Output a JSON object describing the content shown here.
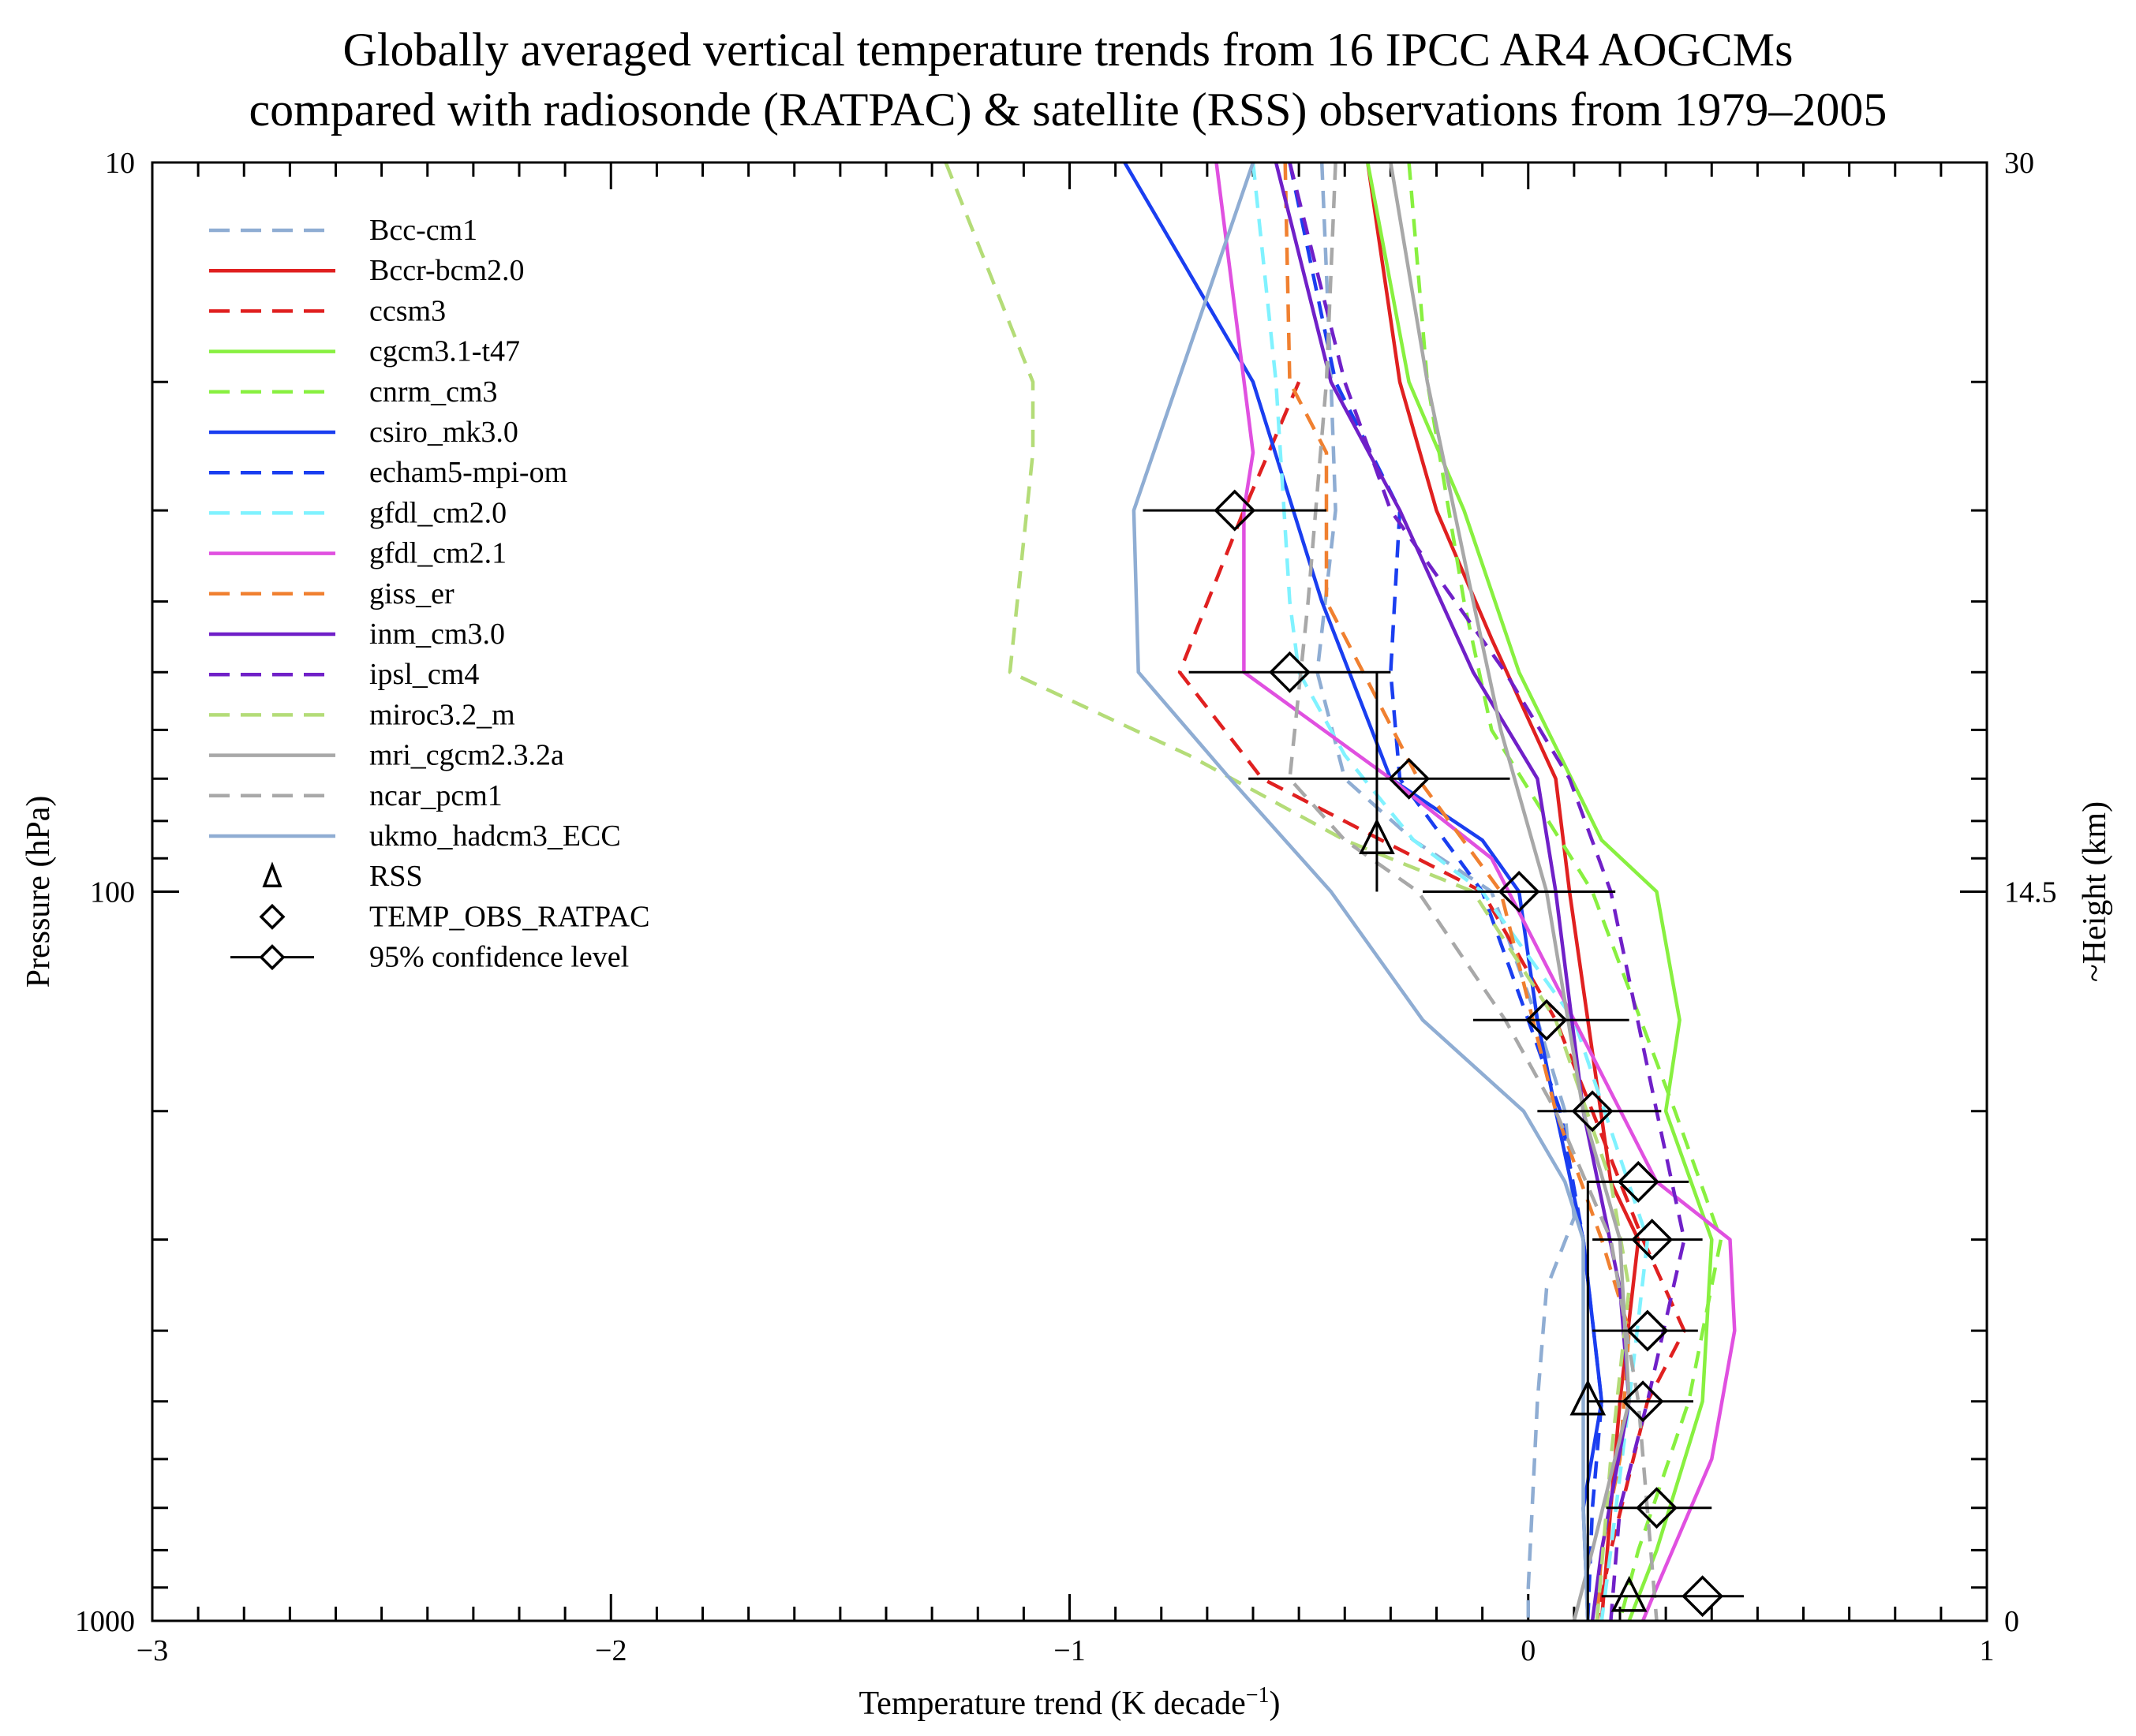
{
  "title_line1": "Globally averaged vertical temperature trends from 16 IPCC AR4 AOGCMs",
  "title_line2": "compared with radiosonde (RATPAC) & satellite (RSS) observations from 1979–2005",
  "chart_data": {
    "type": "line",
    "xlabel": "Temperature trend (K decade",
    "xlabel_sup": "−1",
    "xlabel_end": ")",
    "ylabel": "Pressure (hPa)",
    "y2label": "~Height (km)",
    "xlim": [
      -3,
      1
    ],
    "ylim": [
      1000,
      10
    ],
    "yscale": "log",
    "x_ticks": [
      "−3",
      "−2",
      "−1",
      "0",
      "1"
    ],
    "y_ticks": [
      "10",
      "100",
      "1000"
    ],
    "y2_ticks": [
      "30",
      "14.5",
      "0"
    ],
    "legend_position": "top-left",
    "series": [
      {
        "name": "Bcc-cm1",
        "color": "#8fadd3",
        "dash": true,
        "points": [
          [
            -0.45,
            10
          ],
          [
            -0.43,
            20
          ],
          [
            -0.42,
            30
          ],
          [
            -0.46,
            50
          ],
          [
            -0.4,
            70
          ],
          [
            -0.25,
            85
          ],
          [
            -0.08,
            100
          ],
          [
            0.02,
            150
          ],
          [
            0.08,
            200
          ],
          [
            0.1,
            280
          ],
          [
            0.04,
            350
          ],
          [
            0.02,
            500
          ],
          [
            0.0,
            900
          ],
          [
            0.0,
            1000
          ]
        ]
      },
      {
        "name": "Bccr-bcm2.0",
        "color": "#e02020",
        "dash": false,
        "points": [
          [
            -0.35,
            10
          ],
          [
            -0.28,
            20
          ],
          [
            -0.2,
            30
          ],
          [
            -0.08,
            45
          ],
          [
            0.06,
            70
          ],
          [
            0.09,
            100
          ],
          [
            0.13,
            150
          ],
          [
            0.18,
            250
          ],
          [
            0.24,
            300
          ],
          [
            0.2,
            500
          ],
          [
            0.18,
            700
          ],
          [
            0.16,
            1000
          ]
        ]
      },
      {
        "name": "ccsm3",
        "color": "#e02020",
        "dash": true,
        "points": [
          [
            -0.5,
            20
          ],
          [
            -0.62,
            30
          ],
          [
            -0.76,
            50
          ],
          [
            -0.58,
            70
          ],
          [
            -0.32,
            85
          ],
          [
            -0.1,
            100
          ],
          [
            0.06,
            150
          ],
          [
            0.14,
            200
          ],
          [
            0.2,
            250
          ],
          [
            0.25,
            300
          ],
          [
            0.34,
            400
          ],
          [
            0.26,
            500
          ],
          [
            0.18,
            800
          ],
          [
            0.15,
            1000
          ]
        ]
      },
      {
        "name": "cgcm3.1-t47",
        "color": "#88f040",
        "dash": false,
        "points": [
          [
            -0.35,
            10
          ],
          [
            -0.26,
            20
          ],
          [
            -0.14,
            30
          ],
          [
            -0.02,
            50
          ],
          [
            0.16,
            85
          ],
          [
            0.28,
            100
          ],
          [
            0.33,
            150
          ],
          [
            0.3,
            200
          ],
          [
            0.4,
            300
          ],
          [
            0.38,
            500
          ],
          [
            0.28,
            800
          ],
          [
            0.22,
            1000
          ]
        ]
      },
      {
        "name": "cnrm_cm3",
        "color": "#88f040",
        "dash": true,
        "points": [
          [
            -0.26,
            10
          ],
          [
            -0.22,
            20
          ],
          [
            -0.14,
            40
          ],
          [
            -0.08,
            60
          ],
          [
            0.14,
            100
          ],
          [
            0.32,
            200
          ],
          [
            0.42,
            300
          ],
          [
            0.35,
            500
          ],
          [
            0.24,
            800
          ],
          [
            0.2,
            1000
          ]
        ]
      },
      {
        "name": "csiro_mk3.0",
        "color": "#1a3ef0",
        "dash": false,
        "points": [
          [
            -0.88,
            10
          ],
          [
            -0.6,
            20
          ],
          [
            -0.45,
            40
          ],
          [
            -0.3,
            70
          ],
          [
            -0.1,
            85
          ],
          [
            -0.02,
            100
          ],
          [
            0.02,
            150
          ],
          [
            0.06,
            200
          ],
          [
            0.12,
            300
          ],
          [
            0.16,
            500
          ],
          [
            0.12,
            700
          ],
          [
            0.13,
            1000
          ]
        ]
      },
      {
        "name": "echam5-mpi-om",
        "color": "#1a3ef0",
        "dash": true,
        "points": [
          [
            -0.52,
            10
          ],
          [
            -0.42,
            20
          ],
          [
            -0.28,
            30
          ],
          [
            -0.3,
            50
          ],
          [
            -0.28,
            70
          ],
          [
            -0.1,
            100
          ],
          [
            0.0,
            150
          ],
          [
            0.07,
            200
          ],
          [
            0.12,
            300
          ],
          [
            0.16,
            500
          ],
          [
            0.14,
            700
          ],
          [
            0.13,
            1000
          ]
        ]
      },
      {
        "name": "gfdl_cm2.0",
        "color": "#80f2ff",
        "dash": true,
        "points": [
          [
            -0.6,
            10
          ],
          [
            -0.55,
            20
          ],
          [
            -0.52,
            40
          ],
          [
            -0.5,
            50
          ],
          [
            -0.4,
            65
          ],
          [
            -0.25,
            85
          ],
          [
            -0.1,
            100
          ],
          [
            0.1,
            150
          ],
          [
            0.26,
            300
          ],
          [
            0.22,
            500
          ],
          [
            0.18,
            800
          ],
          [
            0.16,
            1000
          ]
        ]
      },
      {
        "name": "gfdl_cm2.1",
        "color": "#e050e0",
        "dash": false,
        "points": [
          [
            -0.68,
            10
          ],
          [
            -0.6,
            25
          ],
          [
            -0.62,
            30
          ],
          [
            -0.62,
            50
          ],
          [
            -0.3,
            70
          ],
          [
            -0.08,
            90
          ],
          [
            0.1,
            150
          ],
          [
            0.28,
            250
          ],
          [
            0.44,
            300
          ],
          [
            0.45,
            400
          ],
          [
            0.4,
            600
          ],
          [
            0.28,
            900
          ],
          [
            0.25,
            1000
          ]
        ]
      },
      {
        "name": "giss_er",
        "color": "#f08030",
        "dash": true,
        "points": [
          [
            -0.53,
            10
          ],
          [
            -0.52,
            20
          ],
          [
            -0.44,
            25
          ],
          [
            -0.44,
            40
          ],
          [
            -0.36,
            50
          ],
          [
            -0.24,
            70
          ],
          [
            -0.06,
            100
          ],
          [
            0.06,
            200
          ],
          [
            0.16,
            300
          ],
          [
            0.22,
            400
          ],
          [
            0.2,
            600
          ],
          [
            0.16,
            800
          ],
          [
            0.15,
            1000
          ]
        ]
      },
      {
        "name": "inm_cm3.0",
        "color": "#7020c8",
        "dash": false,
        "points": [
          [
            -0.55,
            10
          ],
          [
            -0.43,
            20
          ],
          [
            -0.28,
            30
          ],
          [
            -0.12,
            50
          ],
          [
            0.02,
            70
          ],
          [
            0.06,
            100
          ],
          [
            0.12,
            200
          ],
          [
            0.2,
            350
          ],
          [
            0.22,
            500
          ],
          [
            0.16,
            800
          ],
          [
            0.14,
            1000
          ]
        ]
      },
      {
        "name": "ipsl_cm4",
        "color": "#7020c8",
        "dash": true,
        "points": [
          [
            -0.52,
            10
          ],
          [
            -0.4,
            20
          ],
          [
            -0.3,
            30
          ],
          [
            -0.05,
            50
          ],
          [
            0.09,
            70
          ],
          [
            0.18,
            100
          ],
          [
            0.28,
            200
          ],
          [
            0.34,
            300
          ],
          [
            0.26,
            500
          ],
          [
            0.2,
            700
          ],
          [
            0.18,
            1000
          ]
        ]
      },
      {
        "name": "miroc3.2_m",
        "color": "#b4dc78",
        "dash": true,
        "points": [
          [
            -1.27,
            10
          ],
          [
            -1.08,
            20
          ],
          [
            -1.08,
            25
          ],
          [
            -1.13,
            50
          ],
          [
            -0.74,
            65
          ],
          [
            -0.4,
            85
          ],
          [
            -0.12,
            100
          ],
          [
            0.06,
            150
          ],
          [
            0.18,
            250
          ],
          [
            0.22,
            350
          ],
          [
            0.18,
            600
          ],
          [
            0.15,
            1000
          ]
        ]
      },
      {
        "name": "mri_cgcm2.3.2a",
        "color": "#a8a8a8",
        "dash": false,
        "points": [
          [
            -0.3,
            10
          ],
          [
            -0.22,
            20
          ],
          [
            -0.12,
            40
          ],
          [
            -0.06,
            60
          ],
          [
            0.04,
            100
          ],
          [
            0.12,
            200
          ],
          [
            0.2,
            300
          ],
          [
            0.22,
            500
          ],
          [
            0.14,
            800
          ],
          [
            0.1,
            1000
          ]
        ]
      },
      {
        "name": "ncar_pcm1",
        "color": "#a8a8a8",
        "dash": true,
        "points": [
          [
            -0.42,
            10
          ],
          [
            -0.44,
            20
          ],
          [
            -0.48,
            40
          ],
          [
            -0.52,
            70
          ],
          [
            -0.4,
            85
          ],
          [
            -0.24,
            100
          ],
          [
            -0.05,
            150
          ],
          [
            0.06,
            200
          ],
          [
            0.18,
            300
          ],
          [
            0.24,
            500
          ],
          [
            0.28,
            1000
          ]
        ]
      },
      {
        "name": "ukmo_hadcm3_ECC",
        "color": "#8fadd3",
        "dash": false,
        "points": [
          [
            -0.6,
            10
          ],
          [
            -0.86,
            30
          ],
          [
            -0.85,
            50
          ],
          [
            -0.65,
            70
          ],
          [
            -0.43,
            100
          ],
          [
            -0.23,
            150
          ],
          [
            -0.01,
            200
          ],
          [
            0.08,
            250
          ],
          [
            0.12,
            300
          ],
          [
            0.12,
            500
          ],
          [
            0.12,
            700
          ],
          [
            0.13,
            1000
          ]
        ]
      }
    ],
    "observations": {
      "RSS": {
        "name": "RSS",
        "points": [
          [
            -0.33,
            85
          ],
          [
            0.13,
            500
          ],
          [
            0.22,
            930
          ]
        ]
      },
      "TEMP_OBS_RATPAC": {
        "name": "TEMP_OBS_RATPAC",
        "points": [
          [
            -0.64,
            30
          ],
          [
            -0.52,
            50
          ],
          [
            -0.26,
            70
          ],
          [
            -0.02,
            100
          ],
          [
            0.04,
            150
          ],
          [
            0.14,
            200
          ],
          [
            0.24,
            250
          ],
          [
            0.27,
            300
          ],
          [
            0.26,
            400
          ],
          [
            0.25,
            500
          ],
          [
            0.28,
            700
          ],
          [
            0.38,
            925
          ]
        ],
        "ci_lo": [
          -0.84,
          -0.74,
          -0.61,
          -0.23,
          -0.12,
          0.02,
          0.13,
          0.14,
          0.14,
          0.13,
          0.17,
          0.16
        ],
        "ci_hi": [
          -0.44,
          -0.3,
          -0.04,
          0.19,
          0.22,
          0.29,
          0.35,
          0.38,
          0.37,
          0.36,
          0.4,
          0.47
        ]
      }
    },
    "rss_error": {
      "layer_lower": {
        "x": -0.33,
        "ylo": 50,
        "yhi": 100
      },
      "layer_upper": {
        "x": 0.13,
        "ylo": 250,
        "yhi": 1000
      }
    },
    "legend_extra": [
      "RSS",
      "TEMP_OBS_RATPAC",
      "95% confidence level"
    ]
  }
}
